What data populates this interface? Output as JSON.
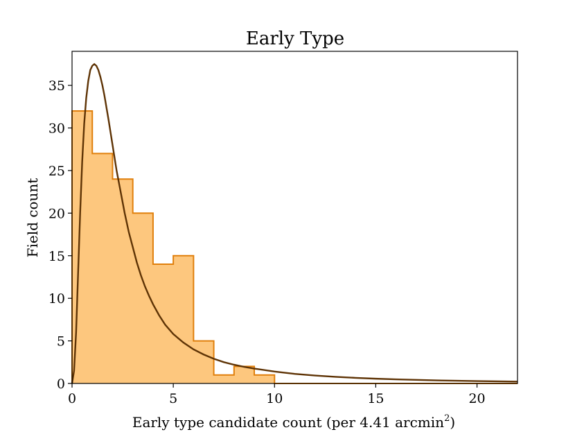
{
  "chart_data": {
    "type": "histogram",
    "title": "Early Type",
    "xlabel_text": "Early type candidate count (per 4.41 arcmin",
    "xlabel_sup": "2",
    "xlabel_close": ")",
    "ylabel": "Field count",
    "xlim": [
      0,
      22
    ],
    "ylim": [
      0,
      39
    ],
    "xticks": [
      0,
      5,
      10,
      15,
      20
    ],
    "yticks": [
      0,
      5,
      10,
      15,
      20,
      25,
      30,
      35
    ],
    "bin_edges": [
      0,
      1,
      2,
      3,
      4,
      5,
      6,
      7,
      8,
      9,
      10,
      11,
      12,
      13,
      14,
      15,
      16,
      17,
      18,
      19,
      20,
      21,
      22
    ],
    "counts": [
      32,
      27,
      24,
      20,
      14,
      15,
      5,
      1,
      2,
      1,
      0,
      0,
      0,
      0,
      0,
      0,
      0,
      0,
      0,
      0,
      0,
      0
    ],
    "fit_curve": {
      "name": "fit",
      "x": [
        0,
        0.1,
        0.2,
        0.3,
        0.4,
        0.5,
        0.6,
        0.7,
        0.8,
        0.9,
        1.0,
        1.1,
        1.2,
        1.3,
        1.4,
        1.5,
        1.6,
        1.8,
        2.0,
        2.2,
        2.4,
        2.6,
        2.8,
        3.0,
        3.2,
        3.4,
        3.6,
        3.8,
        4.0,
        4.3,
        4.6,
        5.0,
        5.5,
        6.0,
        6.5,
        7.0,
        7.5,
        8.0,
        8.5,
        9.0,
        10,
        11,
        12,
        13,
        14,
        15,
        16,
        17,
        18,
        19,
        20,
        21,
        22
      ],
      "y": [
        0,
        1.5,
        6,
        13,
        20,
        26,
        30.5,
        33.5,
        35.5,
        36.8,
        37.3,
        37.5,
        37.3,
        36.8,
        36,
        35,
        33.8,
        31,
        28,
        25,
        22.5,
        20,
        17.8,
        16,
        14.2,
        12.7,
        11.4,
        10.3,
        9.3,
        8.0,
        6.9,
        5.8,
        4.8,
        4.0,
        3.4,
        2.9,
        2.5,
        2.2,
        1.95,
        1.75,
        1.4,
        1.12,
        0.93,
        0.78,
        0.66,
        0.56,
        0.48,
        0.42,
        0.36,
        0.32,
        0.28,
        0.25,
        0.22
      ]
    },
    "colors": {
      "hist_fill": "#fdc77e",
      "hist_edge": "#e07f0b",
      "fit_line": "#5e3305",
      "axes": "#000000"
    }
  }
}
